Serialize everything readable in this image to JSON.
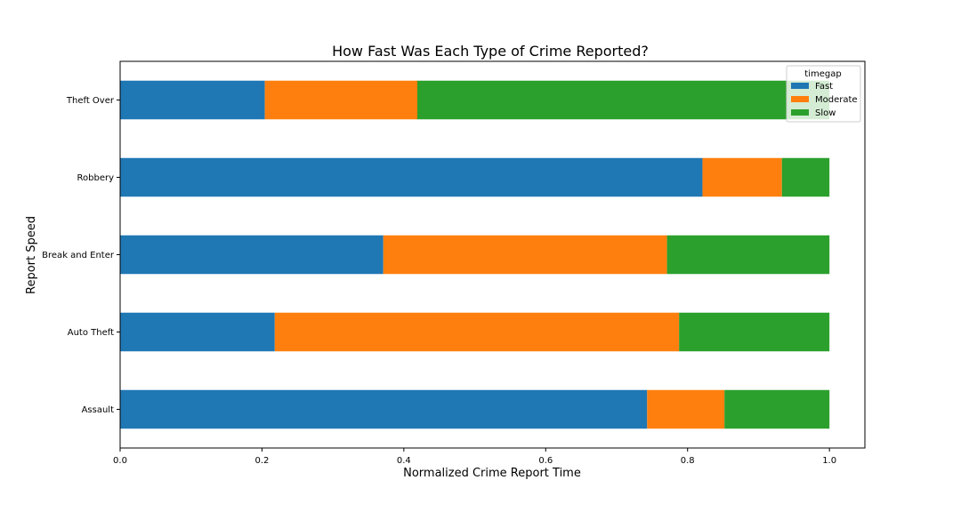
{
  "chart_data": {
    "type": "bar",
    "orientation": "horizontal",
    "stacked": true,
    "title": "How Fast Was Each Type of Crime Reported?",
    "xlabel": "Normalized Crime Report Time",
    "ylabel": "Report Speed",
    "categories": [
      "Assault",
      "Auto Theft",
      "Break and Enter",
      "Robbery",
      "Theft Over"
    ],
    "series": [
      {
        "name": "Fast",
        "color": "#1f77b4",
        "values": [
          0.743,
          0.218,
          0.371,
          0.821,
          0.204
        ]
      },
      {
        "name": "Moderate",
        "color": "#ff7f0e",
        "values": [
          0.109,
          0.57,
          0.4,
          0.112,
          0.215
        ]
      },
      {
        "name": "Slow",
        "color": "#2ca02c",
        "values": [
          0.148,
          0.212,
          0.229,
          0.067,
          0.581
        ]
      }
    ],
    "xlim": [
      0,
      1.05
    ],
    "xticks": [
      0,
      0.2,
      0.4,
      0.6,
      0.8,
      1.0
    ],
    "xtick_labels": [
      "0.0",
      "0.2",
      "0.4",
      "0.6",
      "0.8",
      "1.0"
    ],
    "grid": false,
    "legend": {
      "title": "timegap",
      "placement": "top-right",
      "entries": [
        "Fast",
        "Moderate",
        "Slow"
      ]
    }
  }
}
